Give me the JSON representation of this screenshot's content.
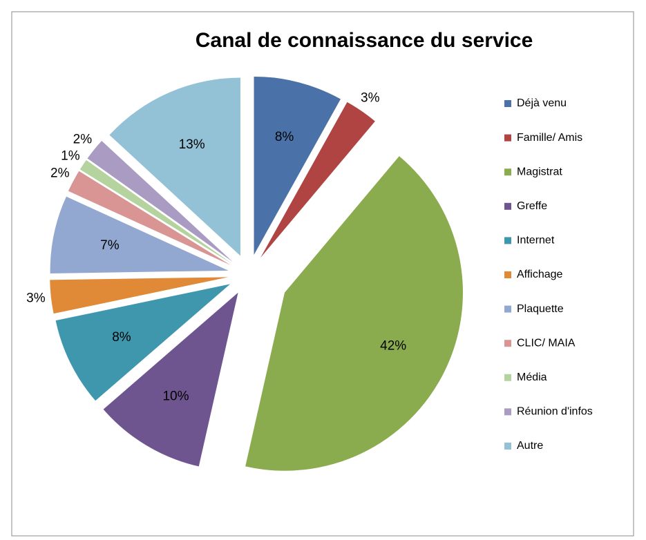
{
  "chart_data": {
    "type": "pie",
    "title": "Canal de connaissance du service",
    "categories": [
      "Déjà venu",
      "Famille/ Amis",
      "Magistrat",
      "Greffe",
      "Internet",
      "Affichage",
      "Plaquette",
      "CLIC/ MAIA",
      "Média",
      "Réunion d'infos",
      "Autre"
    ],
    "values": [
      8,
      3,
      42,
      10,
      8,
      3,
      7,
      2,
      1,
      2,
      13
    ],
    "value_labels": [
      "8%",
      "3%",
      "42%",
      "10%",
      "8%",
      "3%",
      "7%",
      "2%",
      "1%",
      "2%",
      "13%"
    ],
    "colors": [
      "#4a72a8",
      "#b04442",
      "#8aac4e",
      "#6f5590",
      "#3f97ae",
      "#e08937",
      "#93a8d1",
      "#d99594",
      "#b5d39e",
      "#a99bc2",
      "#93c2d6"
    ],
    "legend": "right"
  }
}
